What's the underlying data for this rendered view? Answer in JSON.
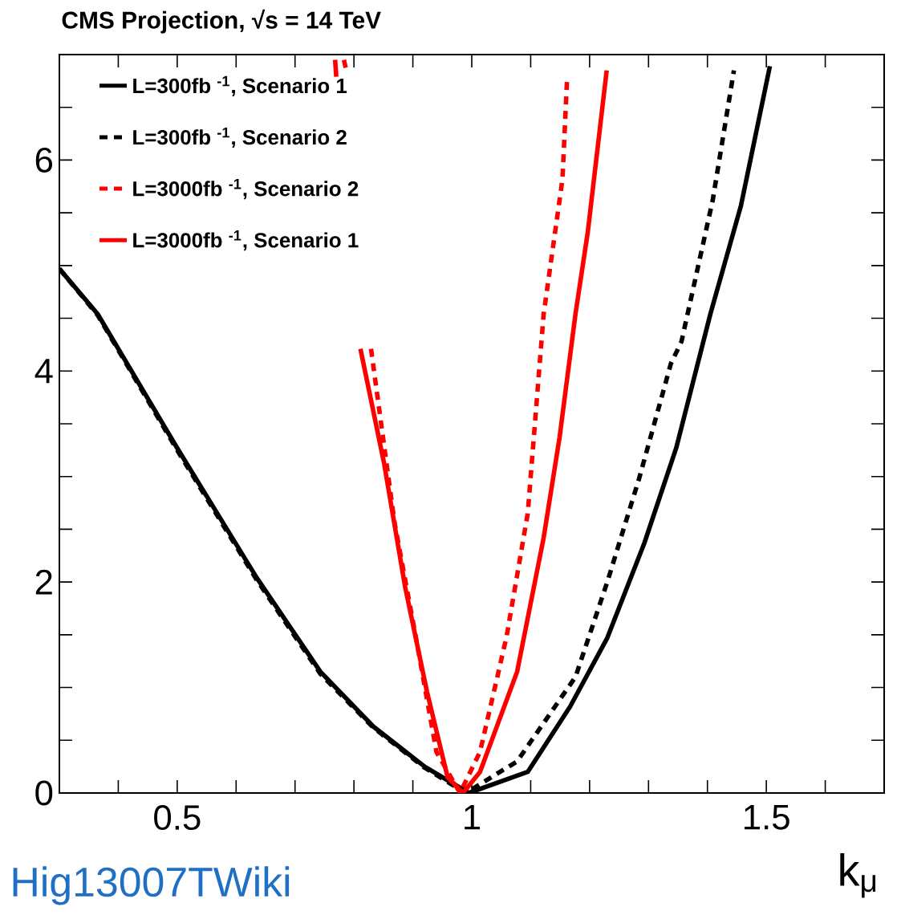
{
  "chart_data": {
    "type": "line",
    "title": "CMS Projection, √s = 14 TeV",
    "xlabel": "k$_{μ}$",
    "annotations": [
      "Hig13007TWiki"
    ],
    "xlim": [
      0.3,
      1.7
    ],
    "ylim": [
      0,
      7
    ],
    "xticks": [
      {
        "value": 0.4,
        "label": null
      },
      0.5,
      {
        "value": 0.6,
        "label": null
      },
      {
        "value": 0.7,
        "label": null
      },
      {
        "value": 0.8,
        "label": null
      },
      {
        "value": 0.9,
        "label": null
      },
      1,
      {
        "value": 1.1,
        "label": null
      },
      {
        "value": 1.2,
        "label": null
      },
      {
        "value": 1.3,
        "label": null
      },
      {
        "value": 1.4,
        "label": null
      },
      1.5,
      {
        "value": 1.6,
        "label": null
      }
    ],
    "yticks": [
      0,
      {
        "value": 0.5,
        "label": null
      },
      {
        "value": 1,
        "label": null
      },
      {
        "value": 1.5,
        "label": null
      },
      2,
      {
        "value": 2.5,
        "label": null
      },
      {
        "value": 3,
        "label": null
      },
      {
        "value": 3.5,
        "label": null
      },
      4,
      {
        "value": 4.5,
        "label": null
      },
      {
        "value": 5,
        "label": null
      },
      {
        "value": 5.5,
        "label": null
      },
      6,
      {
        "value": 6.5,
        "label": null
      }
    ],
    "legend": "top left",
    "grid": false,
    "series": [
      {
        "name": "L=300fb $^{-1}$, Scenario 1",
        "color": "#000000",
        "line_style": "solid",
        "x": [
          0.3,
          0.365,
          0.5,
          0.635,
          0.743,
          0.833,
          0.92,
          0.995,
          1.095,
          1.167,
          1.23,
          1.293,
          1.347,
          1.405,
          1.457,
          1.506
        ],
        "values": [
          4.97,
          4.54,
          3.27,
          2.04,
          1.15,
          0.63,
          0.25,
          0,
          0.2,
          0.82,
          1.47,
          2.37,
          3.27,
          4.54,
          5.57,
          6.89
        ]
      },
      {
        "name": "L=300fb $^{-1}$, Scenario 2",
        "color": "#000000",
        "line_style": "dashed",
        "x": [
          0.3,
          0.365,
          0.5,
          0.635,
          0.743,
          0.833,
          0.92,
          0.99,
          1.077,
          1.176,
          1.23,
          1.284,
          1.338,
          1.356,
          1.409,
          1.445
        ],
        "values": [
          4.97,
          4.53,
          3.25,
          2.02,
          1.13,
          0.62,
          0.24,
          0,
          0.3,
          1.1,
          2.0,
          2.98,
          4.07,
          4.28,
          5.62,
          6.85
        ]
      },
      {
        "name": "L=3000fb $^{-1}$, Scenario 2",
        "color": "#ff0000",
        "line_style": "dashed",
        "x": [
          0.783,
          0.787,
          0.8,
          0.829,
          0.869,
          0.905,
          0.94,
          0.98,
          1.014,
          1.059,
          1.095,
          1.122,
          1.154,
          1.162
        ],
        "values": [
          6.95,
          6.85,
          null,
          4.21,
          2.56,
          1.48,
          0.39,
          0,
          0.39,
          1.48,
          2.65,
          4.54,
          5.82,
          6.8
        ]
      },
      {
        "name": "L=3000fb $^{-1}$, Scenario 1",
        "color": "#ff0000",
        "line_style": "solid",
        "x": [
          0.768,
          0.77,
          0.79,
          0.811,
          0.851,
          0.887,
          0.924,
          0.959,
          0.985,
          1.014,
          1.077,
          1.122,
          1.149,
          1.176,
          1.197,
          1.229
        ],
        "values": [
          6.95,
          6.79,
          null,
          4.21,
          3.13,
          1.95,
          0.96,
          0.15,
          0,
          0.2,
          1.15,
          2.42,
          3.37,
          4.54,
          5.32,
          6.85
        ]
      }
    ]
  }
}
